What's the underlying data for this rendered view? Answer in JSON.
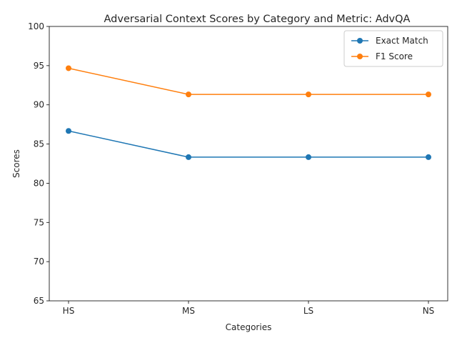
{
  "chart_data": {
    "type": "line",
    "title": "Adversarial Context Scores by Category and Metric: AdvQA",
    "xlabel": "Categories",
    "ylabel": "Scores",
    "categories": [
      "HS",
      "MS",
      "LS",
      "NS"
    ],
    "ylim": [
      65,
      100
    ],
    "yticks": [
      65,
      70,
      75,
      80,
      85,
      90,
      95,
      100
    ],
    "grid": false,
    "legend_position": "top-right",
    "series": [
      {
        "name": "Exact Match",
        "color": "#1f77b4",
        "marker": "circle",
        "values": [
          86.67,
          83.33,
          83.33,
          83.33
        ]
      },
      {
        "name": "F1 Score",
        "color": "#ff7f0e",
        "marker": "circle",
        "values": [
          94.67,
          91.33,
          91.33,
          91.33
        ]
      }
    ]
  }
}
